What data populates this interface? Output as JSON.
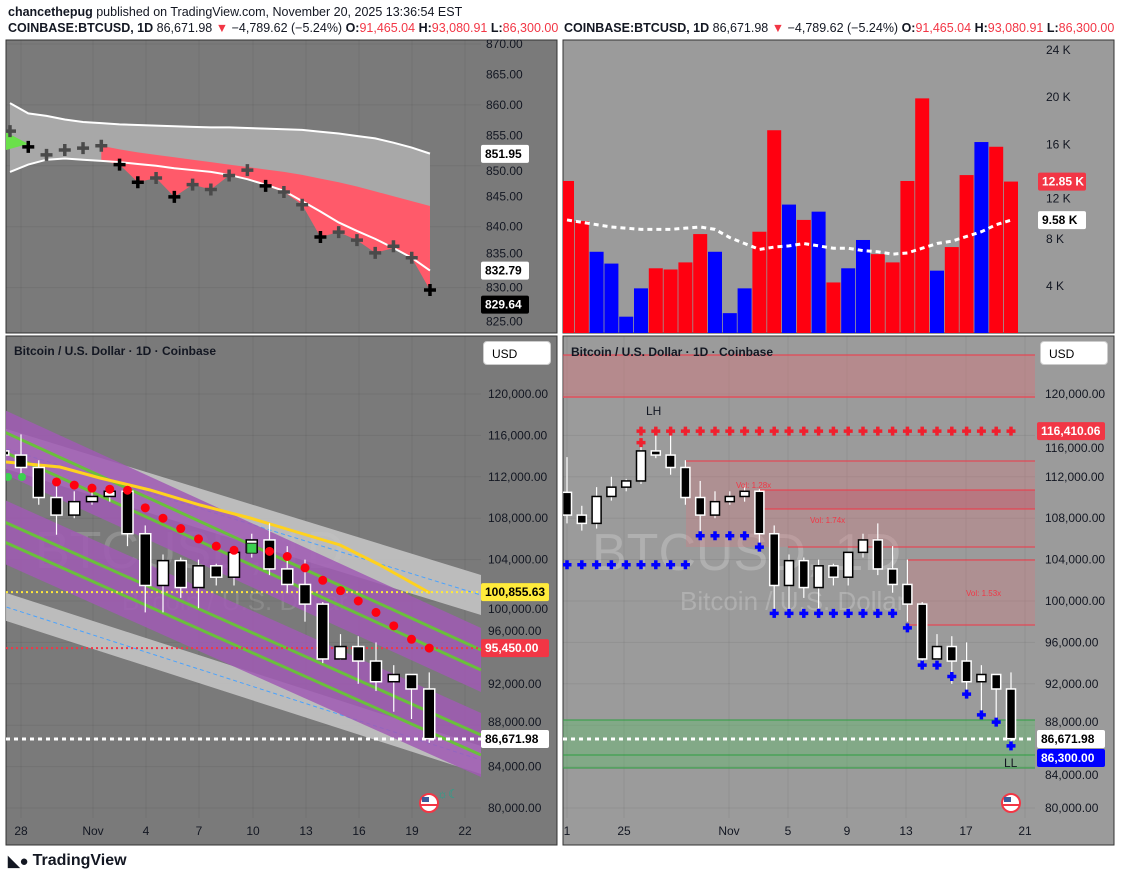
{
  "header": {
    "publisher": "chancethepug",
    "published_text": "published on TradingView.com, November 20, 2025 13:36:54 EST"
  },
  "quote": {
    "symbol": "COINBASE:BTCUSD, 1D",
    "last": "86,671.98",
    "change": "−4,789.62 (−5.24%)",
    "o_label": "O:",
    "open": "91,465.04",
    "h_label": "H:",
    "high": "93,080.91",
    "l_label": "L:",
    "low": "86,300.00",
    "c_label": "C"
  },
  "colors": {
    "up": "#ffffff",
    "down": "#000000",
    "red": "#f23645",
    "blue": "#0000ff",
    "yellow": "#ffeb3b",
    "purple": "#a05ab4",
    "green": "#6abf3c"
  },
  "legend": "Bitcoin / U.S. Dollar · 1D · Coinbase",
  "currency": "USD",
  "watermark": {
    "symbol": "BTCUSD, 1D",
    "name": "Bitcoin / U.S. Dollar"
  },
  "brand": "TradingView",
  "top_left": {
    "axis": [
      "870.00",
      "865.00",
      "860.00",
      "855.00",
      "850.00",
      "845.00",
      "840.00",
      "835.00",
      "830.00",
      "825.00"
    ],
    "tags": [
      {
        "text": "851.95",
        "value": 851.95,
        "bg": "#ffffff",
        "fg": "#000000"
      },
      {
        "text": "832.79",
        "value": 832.79,
        "bg": "#ffffff",
        "fg": "#000000"
      },
      {
        "text": "829.64",
        "value": 829.64,
        "bg": "#000000",
        "fg": "#ffffff"
      }
    ],
    "crosses": [
      855.7,
      853.1,
      851.8,
      852.6,
      852.9,
      853.3,
      850.2,
      847.3,
      848.0,
      844.9,
      846.9,
      846.1,
      848.4,
      849.3,
      846.7,
      845.7,
      843.6,
      838.3,
      839.1,
      837.8,
      835.7,
      836.8,
      834.9,
      829.6
    ],
    "upper": [
      860.3,
      858.6,
      858.2,
      857.6,
      857.2,
      857.0,
      856.8,
      856.7,
      856.6,
      856.5,
      856.4,
      856.3,
      856.3,
      856.2,
      856.1,
      856.0,
      855.9,
      855.6,
      855.3,
      854.9,
      854.5,
      853.8,
      853.0,
      852.0
    ],
    "lower": [
      849.0,
      850.2,
      851.0,
      851.2,
      851.0,
      850.8,
      850.6,
      850.3,
      850.0,
      849.6,
      849.3,
      849.0,
      848.5,
      847.8,
      846.9,
      845.9,
      844.2,
      842.5,
      840.7,
      839.3,
      838.0,
      836.5,
      834.9,
      832.8
    ],
    "redtop": [
      null,
      null,
      null,
      null,
      null,
      853.3,
      852.7,
      852.2,
      851.8,
      851.4,
      851.0,
      850.6,
      850.2,
      849.8,
      849.4,
      849.0,
      848.5,
      847.9,
      847.3,
      846.6,
      845.8,
      845.0,
      844.2,
      843.4
    ]
  },
  "top_right": {
    "axis": [
      "24 K",
      "20 K",
      "16 K",
      "12 K",
      "8 K",
      "4 K"
    ],
    "tags": [
      {
        "text": "12.85 K",
        "value": 12.85,
        "bg": "#f23645",
        "fg": "#ffffff"
      },
      {
        "text": "9.58 K",
        "value": 9.58,
        "bg": "#ffffff",
        "fg": "#000000"
      }
    ],
    "volume": [
      12.9,
      9.5,
      6.9,
      5.9,
      1.4,
      3.8,
      5.5,
      5.4,
      6.0,
      8.4,
      6.9,
      1.7,
      3.8,
      8.6,
      17.2,
      10.9,
      9.6,
      10.3,
      4.3,
      5.5,
      7.9,
      6.7,
      6.0,
      12.9,
      19.9,
      5.3,
      7.3,
      13.4,
      16.2,
      15.8,
      12.85
    ],
    "vol_color": [
      "r",
      "r",
      "b",
      "b",
      "b",
      "b",
      "r",
      "r",
      "r",
      "r",
      "b",
      "b",
      "b",
      "r",
      "r",
      "b",
      "r",
      "b",
      "r",
      "b",
      "b",
      "r",
      "r",
      "r",
      "r",
      "b",
      "r",
      "r",
      "b",
      "r",
      "r"
    ],
    "ma": [
      9.6,
      9.4,
      9.2,
      9.0,
      8.9,
      8.8,
      8.8,
      8.8,
      8.9,
      9.0,
      8.8,
      8.1,
      7.6,
      7.1,
      7.3,
      7.4,
      7.6,
      7.4,
      7.2,
      7.2,
      7.0,
      6.9,
      6.7,
      6.8,
      7.2,
      7.6,
      7.8,
      8.2,
      8.6,
      9.2,
      9.58
    ]
  },
  "candles": [
    [
      110.5,
      113.9,
      107.5,
      108.3
    ],
    [
      108.3,
      109.2,
      106.8,
      107.5
    ],
    [
      107.5,
      111.0,
      107.0,
      110.1
    ],
    [
      110.1,
      112.0,
      109.7,
      111.0
    ],
    [
      111.0,
      111.8,
      110.6,
      111.6
    ],
    [
      111.6,
      115.5,
      111.3,
      114.5
    ],
    [
      114.5,
      116.4,
      113.8,
      114.1
    ],
    [
      114.1,
      116.1,
      112.2,
      112.9
    ],
    [
      112.9,
      113.6,
      109.3,
      110.0
    ],
    [
      110.0,
      111.6,
      106.4,
      108.3
    ],
    [
      108.3,
      110.6,
      108.0,
      109.6
    ],
    [
      109.6,
      110.6,
      109.3,
      110.1
    ],
    [
      110.1,
      111.2,
      109.6,
      110.6
    ],
    [
      110.6,
      110.8,
      105.3,
      106.5
    ],
    [
      106.5,
      107.3,
      98.9,
      101.5
    ],
    [
      101.5,
      104.5,
      98.9,
      103.9
    ],
    [
      103.9,
      104.2,
      100.3,
      101.3
    ],
    [
      101.3,
      104.0,
      99.3,
      103.4
    ],
    [
      103.4,
      103.6,
      101.5,
      102.3
    ],
    [
      102.3,
      104.7,
      101.5,
      104.7
    ],
    [
      104.7,
      106.5,
      104.2,
      105.9
    ],
    [
      105.9,
      107.5,
      102.5,
      103.1
    ],
    [
      103.1,
      105.3,
      100.8,
      101.6
    ],
    [
      101.6,
      104.0,
      98.0,
      99.7
    ],
    [
      99.7,
      99.9,
      94.0,
      94.4
    ],
    [
      94.4,
      96.8,
      94.3,
      95.6
    ],
    [
      95.6,
      96.6,
      92.0,
      94.2
    ],
    [
      94.2,
      96.0,
      91.3,
      92.2
    ],
    [
      92.2,
      93.8,
      89.3,
      92.9
    ],
    [
      92.9,
      92.9,
      88.6,
      91.5
    ],
    [
      91.5,
      93.1,
      86.3,
      86.7
    ]
  ],
  "bottom_left": {
    "axis": [
      "120,000.00",
      "116,000.00",
      "112,000.00",
      "108,000.00",
      "104,000.00",
      "100,000.00",
      "96,000.00",
      "92,000.00",
      "88,000.00",
      "84,000.00",
      "80,000.00"
    ],
    "dates": [
      "28",
      "Nov",
      "4",
      "7",
      "10",
      "13",
      "16",
      "19",
      "22"
    ],
    "tags": [
      {
        "text": "100,855.63",
        "value": 100855.63,
        "bg": "#ffeb3b",
        "fg": "#000000"
      },
      {
        "text": "95,450.00",
        "value": 95450,
        "bg": "#f23645",
        "fg": "#ffffff"
      },
      {
        "text": "86,671.98",
        "value": 86671.98,
        "bg": "#ffffff",
        "fg": "#000000"
      }
    ],
    "dots": [
      111.5,
      111.2,
      110.9,
      110.8,
      110.7,
      109.0,
      108.0,
      107.0,
      106.0,
      105.3,
      104.9,
      105.1,
      104.8,
      104.3,
      103.2,
      102.0,
      101.0,
      100.0,
      98.9,
      97.6,
      96.3,
      95.45
    ]
  },
  "bottom_right": {
    "axis": [
      "120,000.00",
      "116,000.00",
      "112,000.00",
      "108,000.00",
      "104,000.00",
      "100,000.00",
      "96,000.00",
      "92,000.00",
      "88,000.00",
      "84,000.00",
      "80,000.00"
    ],
    "dates": [
      "1",
      "25",
      "Nov",
      "5",
      "9",
      "13",
      "17",
      "21"
    ],
    "tags": [
      {
        "text": "116,410.06",
        "value": 116410.06,
        "bg": "#f23645",
        "fg": "#ffffff"
      },
      {
        "text": "86,671.98",
        "value": 86671.98,
        "bg": "#ffffff",
        "fg": "#000000"
      },
      {
        "text": "86,300.00",
        "value": 86300,
        "bg": "#0000ff",
        "fg": "#ffffff"
      }
    ],
    "labels": {
      "lh": "LH",
      "ll": "LL",
      "vol1": "Vol: 1.28x",
      "vol2": "Vol: 1.74x",
      "vol3": "Vol: 1.53x"
    },
    "resistance": 116.41
  }
}
